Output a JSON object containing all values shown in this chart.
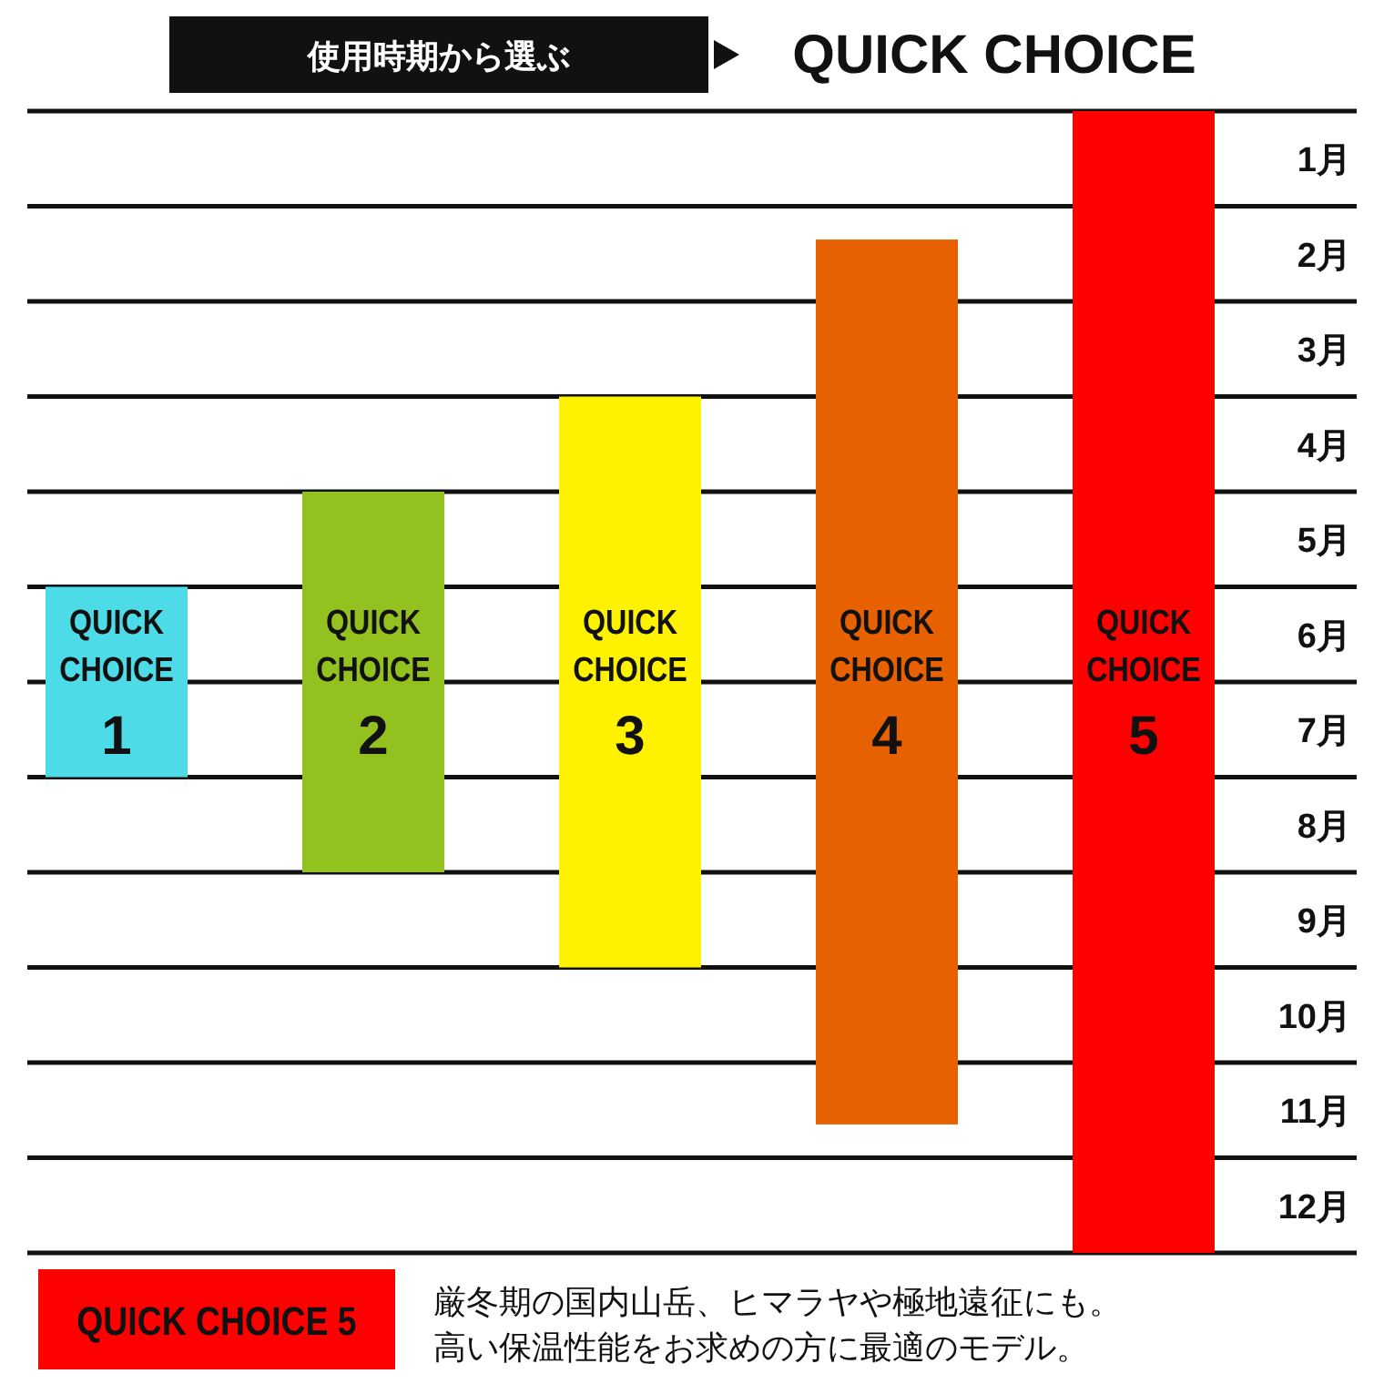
{
  "chart_data": {
    "type": "bar",
    "title": "使用時期から選ぶ",
    "subtitle": "QUICK CHOICE",
    "categories": [
      "QUICK CHOICE 1",
      "QUICK CHOICE 2",
      "QUICK CHOICE 3",
      "QUICK CHOICE 4",
      "QUICK CHOICE 5"
    ],
    "values": [
      2,
      4,
      6,
      9.3,
      12
    ],
    "base": [
      5,
      4,
      3,
      1.35,
      0
    ],
    "colors": [
      "#4ddbe8",
      "#93c11f",
      "#fff200",
      "#e86100",
      "#ff0000"
    ],
    "ylim": [
      12,
      0
    ],
    "yticks": [
      {
        "value": 0.5,
        "label": "1月"
      },
      {
        "value": 1.5,
        "label": "2月"
      },
      {
        "value": 2.5,
        "label": "3月"
      },
      {
        "value": 3.5,
        "label": "4月"
      },
      {
        "value": 4.5,
        "label": "5月"
      },
      {
        "value": 5.5,
        "label": "6月"
      },
      {
        "value": 6.5,
        "label": "7月"
      },
      {
        "value": 7.5,
        "label": "8月"
      },
      {
        "value": 8.5,
        "label": "9月"
      },
      {
        "value": 9.5,
        "label": "10月"
      },
      {
        "value": 10.5,
        "label": "11月"
      },
      {
        "value": 11.5,
        "label": "12月"
      }
    ],
    "ref_lines": [
      {
        "axis": "y",
        "value": 0
      },
      {
        "axis": "y",
        "value": 1
      },
      {
        "axis": "y",
        "value": 2
      },
      {
        "axis": "y",
        "value": 3
      },
      {
        "axis": "y",
        "value": 4
      },
      {
        "axis": "y",
        "value": 5
      },
      {
        "axis": "y",
        "value": 6
      },
      {
        "axis": "y",
        "value": 7
      },
      {
        "axis": "y",
        "value": 8
      },
      {
        "axis": "y",
        "value": 9
      },
      {
        "axis": "y",
        "value": 10
      },
      {
        "axis": "y",
        "value": 11
      },
      {
        "axis": "y",
        "value": 12
      }
    ],
    "annotations": [
      "QUICK CHOICE 5",
      "厳冬期の国内山岳、ヒマラヤや極地遠征にも。",
      "高い保温性能をお求めの方に最適のモデル。"
    ]
  }
}
